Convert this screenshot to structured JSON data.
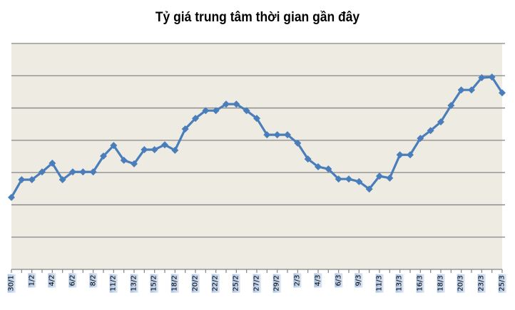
{
  "chart_data": {
    "type": "line",
    "title": "Tỷ giá trung tâm thời gian gần đây",
    "xlabel": "",
    "ylabel": "",
    "y_axis_labels_visible": false,
    "grid": true,
    "legend": "none",
    "ylim": [
      0,
      7
    ],
    "y_unit_note": "relative gridline units (no y-axis tick labels shown)",
    "tick_labels": [
      "30/1",
      "1/2",
      "4/2",
      "6/2",
      "8/2",
      "11/2",
      "13/2",
      "15/2",
      "18/2",
      "20/2",
      "22/2",
      "25/2",
      "27/2",
      "29/2",
      "2/3",
      "4/3",
      "6/3",
      "9/3",
      "11/3",
      "13/3",
      "16/3",
      "18/3",
      "20/3",
      "23/3",
      "25/3"
    ],
    "label_every": 2,
    "series": [
      {
        "name": "Tỷ giá trung tâm",
        "color": "#4a7ebb",
        "values": [
          2.23,
          2.78,
          2.78,
          3.02,
          3.29,
          2.78,
          3.02,
          3.02,
          3.02,
          3.51,
          3.84,
          3.38,
          3.27,
          3.71,
          3.71,
          3.86,
          3.69,
          4.35,
          4.68,
          4.92,
          4.92,
          5.12,
          5.12,
          4.92,
          4.68,
          4.17,
          4.17,
          4.17,
          3.91,
          3.42,
          3.18,
          3.11,
          2.8,
          2.8,
          2.72,
          2.49,
          2.89,
          2.83,
          3.55,
          3.55,
          4.06,
          4.3,
          4.57,
          5.08,
          5.56,
          5.56,
          5.94,
          5.96,
          5.47
        ]
      }
    ]
  },
  "colors": {
    "plot_bg": "#eeebe2",
    "grid": "#868686",
    "line": "#4a7ebb",
    "marker": "#4a7ebb"
  }
}
